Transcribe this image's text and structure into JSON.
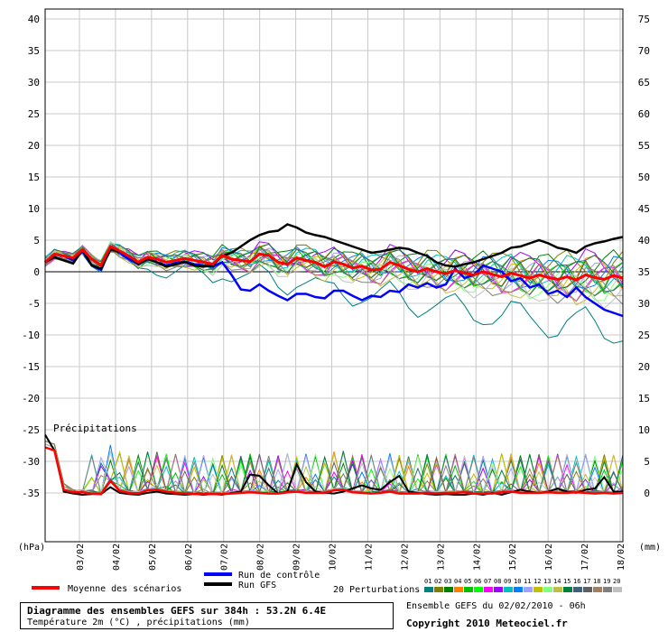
{
  "chart_data": {
    "type": "line",
    "left_axis_label": "(hPa)",
    "right_axis_label": "(mm)",
    "left_ticks": [
      "40",
      "35",
      "30",
      "25",
      "20",
      "15",
      "10",
      "5",
      "0",
      "-5",
      "-10",
      "-15",
      "-20",
      "-25",
      "-30",
      "-35"
    ],
    "right_ticks": [
      "75",
      "70",
      "65",
      "60",
      "55",
      "50",
      "45",
      "40",
      "35",
      "30",
      "25",
      "20",
      "15",
      "10",
      "5",
      "0"
    ],
    "x_ticks": [
      "03/02",
      "04/02",
      "05/02",
      "06/02",
      "07/02",
      "08/02",
      "09/02",
      "10/02",
      "11/02",
      "12/02",
      "13/02",
      "14/02",
      "15/02",
      "16/02",
      "17/02",
      "18/02"
    ],
    "precip_label": "Précipitations",
    "ylim": [
      -35,
      40
    ],
    "precip_ylim": [
      0,
      75
    ],
    "series": [
      {
        "name": "Moyenne des scénarios",
        "color": "#ff0000",
        "values": [
          1.5,
          2.8,
          2.5,
          2.2,
          3.5,
          2.0,
          1.0,
          4.0,
          3.3,
          2.5,
          1.5,
          2.3,
          2.0,
          1.5,
          1.8,
          2.1,
          1.8,
          1.5,
          1.2,
          2.6,
          2.0,
          1.8,
          1.6,
          2.8,
          2.6,
          1.5,
          1.2,
          2.2,
          1.8,
          1.5,
          0.8,
          1.6,
          1.2,
          0.6,
          0.9,
          0.3,
          0.4,
          1.5,
          1.0,
          0.4,
          0.0,
          0.5,
          0.0,
          -0.3,
          0.2,
          -0.2,
          -0.5,
          0.0,
          -0.4,
          -0.8,
          -0.2,
          -0.6,
          -1.0,
          -0.5,
          -0.9,
          -1.2,
          -0.8,
          -1.3,
          -0.5,
          -0.9,
          -1.2,
          -0.6,
          -1.0
        ]
      },
      {
        "name": "Run de contrôle",
        "color": "#0000ff",
        "values": [
          1.5,
          2.8,
          2.5,
          1.8,
          3.2,
          1.0,
          0.3,
          3.8,
          3.0,
          2.0,
          1.2,
          2.0,
          1.5,
          1.0,
          1.4,
          1.6,
          1.2,
          1.0,
          0.8,
          1.5,
          -0.5,
          -2.8,
          -3.0,
          -2.0,
          -3.0,
          -3.8,
          -4.5,
          -3.5,
          -3.5,
          -4.0,
          -4.2,
          -3.0,
          -3.0,
          -3.8,
          -4.5,
          -3.8,
          -4.0,
          -3.0,
          -3.2,
          -2.0,
          -2.5,
          -1.8,
          -2.5,
          -2.0,
          0.5,
          -1.0,
          -0.5,
          1.0,
          0.5,
          0.0,
          -1.5,
          -1.0,
          -2.5,
          -2.0,
          -3.5,
          -3.0,
          -4.0,
          -2.5,
          -4.0,
          -5.0,
          -6.0,
          -6.5,
          -7.0
        ]
      },
      {
        "name": "Run GFS",
        "color": "#000000",
        "values": [
          1.5,
          2.3,
          1.8,
          1.3,
          3.5,
          1.0,
          0.5,
          3.5,
          3.2,
          2.5,
          1.2,
          2.0,
          1.5,
          0.8,
          1.2,
          1.5,
          1.0,
          0.8,
          1.0,
          2.5,
          3.0,
          4.0,
          5.0,
          5.8,
          6.3,
          6.5,
          7.5,
          7.0,
          6.2,
          5.8,
          5.5,
          5.0,
          4.5,
          4.0,
          3.5,
          3.0,
          3.2,
          3.5,
          3.8,
          3.6,
          3.0,
          2.5,
          1.5,
          1.0,
          0.8,
          1.2,
          1.5,
          2.0,
          2.5,
          3.0,
          3.8,
          4.0,
          4.5,
          5.0,
          4.5,
          3.8,
          3.5,
          3.0,
          4.0,
          4.5,
          4.8,
          5.2,
          5.5
        ]
      },
      {
        "name": "01",
        "color": "#008080"
      },
      {
        "name": "02",
        "color": "#808000"
      },
      {
        "name": "03",
        "color": "#008000"
      },
      {
        "name": "04",
        "color": "#ff8000"
      },
      {
        "name": "05",
        "color": "#00c000"
      },
      {
        "name": "06",
        "color": "#00ff00"
      },
      {
        "name": "07",
        "color": "#ff00ff"
      },
      {
        "name": "08",
        "color": "#a000ff"
      },
      {
        "name": "09",
        "color": "#00c0c0"
      },
      {
        "name": "10",
        "color": "#0080ff"
      },
      {
        "name": "11",
        "color": "#a0a0ff"
      },
      {
        "name": "12",
        "color": "#c0c000"
      },
      {
        "name": "13",
        "color": "#80ff80"
      },
      {
        "name": "14",
        "color": "#c0c040"
      },
      {
        "name": "15",
        "color": "#008040"
      },
      {
        "name": "16",
        "color": "#406080"
      },
      {
        "name": "17",
        "color": "#606060"
      },
      {
        "name": "18",
        "color": "#a08060"
      },
      {
        "name": "19",
        "color": "#808080"
      },
      {
        "name": "20",
        "color": "#c0c0c0"
      }
    ],
    "precip_series": [
      {
        "name": "Moyenne des scénarios",
        "color": "#ff0000",
        "values": [
          7.5,
          7.0,
          0.8,
          0.4,
          0.4,
          0.2,
          0.1,
          2.2,
          0.6,
          0.3,
          0.2,
          0.7,
          0.8,
          0.5,
          0.3,
          0.2,
          0.1,
          0.1,
          0.1,
          0.1,
          0.2,
          0.3,
          0.4,
          0.3,
          0.2,
          0.2,
          0.4,
          0.5,
          0.3,
          0.3,
          0.3,
          0.7,
          0.8,
          0.4,
          0.3,
          0.2,
          0.3,
          0.5,
          0.2,
          0.2,
          0.2,
          0.3,
          0.2,
          0.3,
          0.3,
          0.4,
          0.2,
          0.2,
          0.2,
          0.4,
          0.5,
          0.3,
          0.3,
          0.3,
          0.4,
          0.3,
          0.3,
          0.4,
          0.3,
          0.2,
          0.3,
          0.2,
          0.3
        ]
      },
      {
        "name": "Run GFS",
        "color": "#000000",
        "values": [
          9.5,
          7.0,
          0.5,
          0.2,
          0.0,
          0.1,
          0.1,
          1.2,
          0.3,
          0.1,
          0.0,
          0.3,
          0.5,
          0.2,
          0.1,
          0.0,
          0.1,
          0.0,
          0.1,
          0.0,
          0.3,
          0.5,
          3.2,
          3.0,
          1.5,
          0.2,
          0.5,
          4.8,
          2.0,
          0.5,
          0.3,
          0.2,
          0.5,
          1.0,
          1.5,
          1.0,
          0.8,
          2.0,
          3.0,
          0.5,
          0.3,
          0.1,
          0.0,
          0.1,
          0.0,
          0.0,
          0.2,
          0.0,
          0.3,
          0.0,
          0.4,
          0.8,
          0.5,
          0.3,
          0.5,
          1.0,
          0.5,
          0.3,
          0.8,
          1.0,
          2.8,
          0.5,
          0.5
        ]
      }
    ],
    "legend": {
      "mean": "Moyenne des scénarios",
      "control": "Run de contrôle",
      "gfs": "Run GFS",
      "perturbations": "20 Perturbations",
      "numbers": [
        "01",
        "02",
        "03",
        "04",
        "05",
        "06",
        "07",
        "08",
        "09",
        "10",
        "11",
        "12",
        "13",
        "14",
        "15",
        "16",
        "17",
        "18",
        "19",
        "20"
      ]
    }
  },
  "footer": {
    "title": "Diagramme des ensembles GEFS sur 384h : 53.2N 6.4E",
    "subtitle": "Température 2m (°C) , précipitations (mm)",
    "run_info": "Ensemble GEFS du 02/02/2010 - 06h",
    "copyright": "Copyright 2010 Meteociel.fr"
  }
}
